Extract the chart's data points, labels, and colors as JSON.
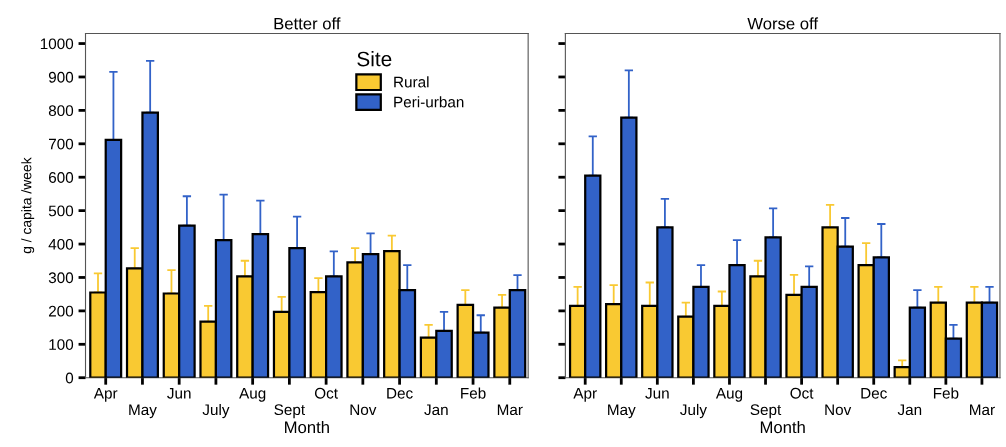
{
  "chart_data": [
    {
      "type": "bar",
      "title": "Better off",
      "xlabel": "Month",
      "ylabel": "g / capita /week",
      "legend_title": "Site",
      "legend": "top right",
      "categories": [
        "Apr",
        "May",
        "Jun",
        "July",
        "Aug",
        "Sept",
        "Oct",
        "Nov",
        "Dec",
        "Jan",
        "Feb",
        "Mar"
      ],
      "ylim": [
        0,
        1030
      ],
      "yticks": [
        0,
        100,
        200,
        300,
        400,
        500,
        600,
        700,
        800,
        900,
        1000
      ],
      "series": [
        {
          "name": "Rural",
          "color": "#f9c932",
          "values": [
            255,
            327,
            252,
            168,
            303,
            197,
            256,
            345,
            379,
            120,
            218,
            210
          ],
          "errors": [
            [
              255,
              312
            ],
            [
              327,
              388
            ],
            [
              252,
              322
            ],
            [
              168,
              215
            ],
            [
              303,
              350
            ],
            [
              197,
              242
            ],
            [
              256,
              298
            ],
            [
              345,
              388
            ],
            [
              379,
              425
            ],
            [
              120,
              158
            ],
            [
              218,
              262
            ],
            [
              210,
              248
            ]
          ]
        },
        {
          "name": "Peri-urban",
          "color": "#3262c8",
          "values": [
            712,
            793,
            455,
            412,
            430,
            388,
            303,
            370,
            262,
            140,
            135,
            262
          ],
          "errors": [
            [
              712,
              915
            ],
            [
              793,
              948
            ],
            [
              455,
              543
            ],
            [
              412,
              548
            ],
            [
              430,
              530
            ],
            [
              388,
              482
            ],
            [
              303,
              378
            ],
            [
              370,
              432
            ],
            [
              262,
              337
            ],
            [
              140,
              197
            ],
            [
              135,
              187
            ],
            [
              262,
              307
            ]
          ]
        }
      ]
    },
    {
      "type": "bar",
      "title": "Worse off",
      "xlabel": "Month",
      "tick_labels": "x",
      "categories": [
        "Apr",
        "May",
        "Jun",
        "July",
        "Aug",
        "Sept",
        "Oct",
        "Nov",
        "Dec",
        "Jan",
        "Feb",
        "Mar"
      ],
      "ylim": [
        0,
        1030
      ],
      "yticks": [
        0,
        100,
        200,
        300,
        400,
        500,
        600,
        700,
        800,
        900,
        1000
      ],
      "series": [
        {
          "color": "#f9c932",
          "values": [
            215,
            220,
            215,
            183,
            215,
            303,
            248,
            450,
            337,
            32,
            225,
            225
          ],
          "errors": [
            [
              215,
              272
            ],
            [
              220,
              277
            ],
            [
              215,
              285
            ],
            [
              183,
              225
            ],
            [
              215,
              258
            ],
            [
              303,
              350
            ],
            [
              248,
              308
            ],
            [
              450,
              517
            ],
            [
              337,
              403
            ],
            [
              32,
              52
            ],
            [
              225,
              272
            ],
            [
              225,
              272
            ]
          ]
        },
        {
          "color": "#3262c8",
          "values": [
            605,
            778,
            450,
            272,
            337,
            420,
            272,
            392,
            360,
            210,
            117,
            225
          ],
          "errors": [
            [
              605,
              722
            ],
            [
              778,
              920
            ],
            [
              450,
              535
            ],
            [
              272,
              337
            ],
            [
              337,
              412
            ],
            [
              420,
              507
            ],
            [
              272,
              333
            ],
            [
              392,
              478
            ],
            [
              360,
              460
            ],
            [
              210,
              262
            ],
            [
              117,
              158
            ],
            [
              225,
              272
            ]
          ]
        }
      ]
    }
  ]
}
